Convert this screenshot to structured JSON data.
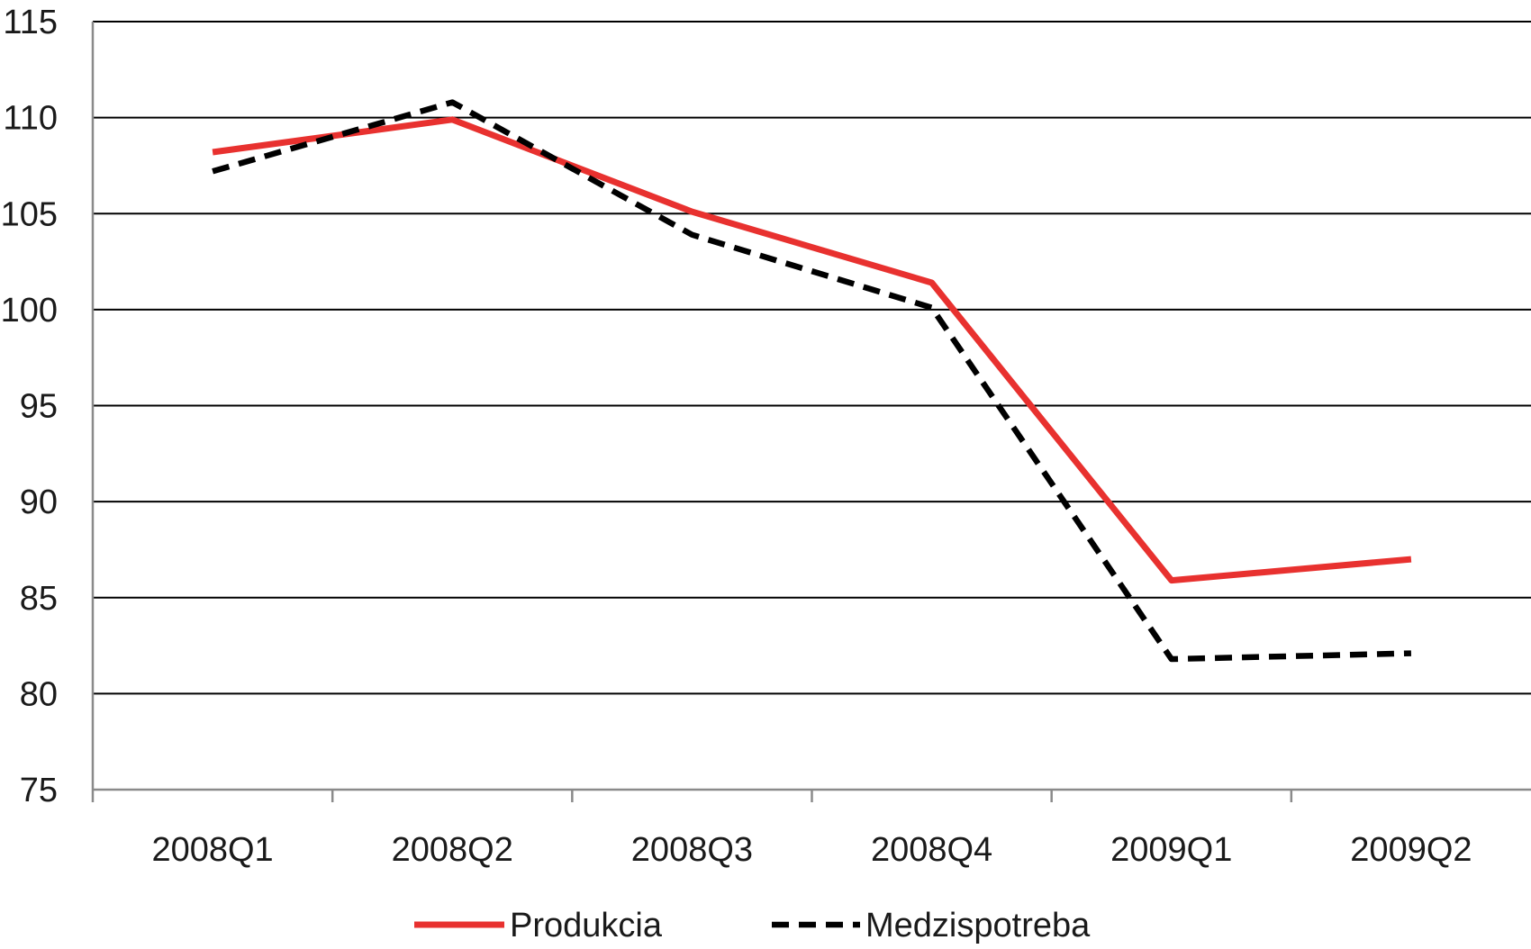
{
  "chart_data": {
    "type": "line",
    "title": "",
    "xlabel": "",
    "ylabel": "",
    "categories": [
      "2008Q1",
      "2008Q2",
      "2008Q3",
      "2008Q4",
      "2009Q1",
      "2009Q2"
    ],
    "ylim": [
      75,
      115
    ],
    "yticks": [
      75,
      80,
      85,
      90,
      95,
      100,
      105,
      110,
      115
    ],
    "grid": true,
    "legend_position": "bottom",
    "series": [
      {
        "name": "Produkcia",
        "values": [
          108.2,
          109.9,
          105.1,
          101.4,
          85.9,
          87.0
        ],
        "color": "#e8312f",
        "style": "solid"
      },
      {
        "name": "Medzispotreba",
        "values": [
          107.2,
          110.8,
          103.9,
          100.1,
          81.8,
          82.1
        ],
        "color": "#000000",
        "style": "dashed"
      }
    ]
  }
}
